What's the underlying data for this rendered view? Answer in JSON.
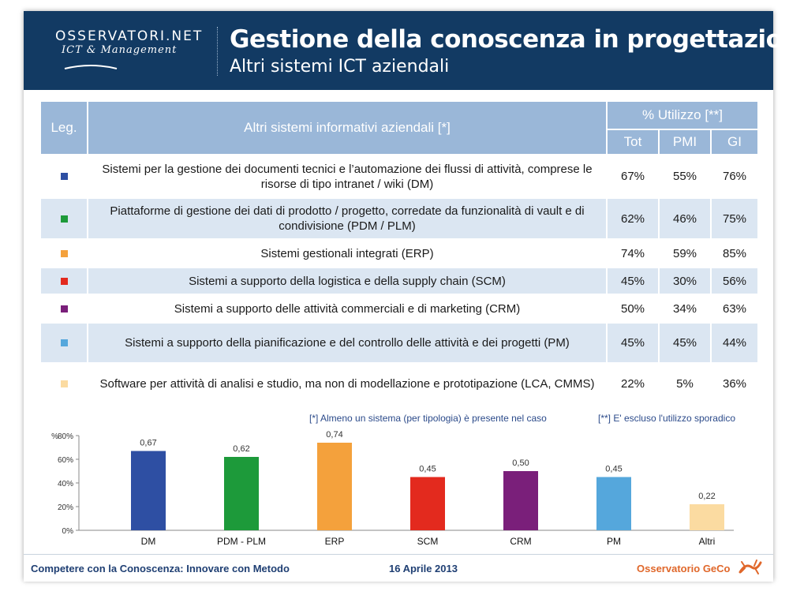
{
  "header": {
    "logo_name": "OSSERVATORI.NET",
    "logo_tagline": "ICT & Management",
    "title": "Gestione della conoscenza in progettazione",
    "subtitle": "Altri sistemi ICT aziendali"
  },
  "table": {
    "col_leg": "Leg.",
    "col_system": "Altri sistemi informativi aziendali [*]",
    "col_usage": "% Utilizzo [**]",
    "col_tot": "Tot",
    "col_pmi": "PMI",
    "col_gi": "GI",
    "rows": [
      {
        "color": "#2e4fa3",
        "label": "Sistemi per la gestione dei documenti tecnici e l’automazione dei flussi di attività, comprese le risorse di tipo intranet / wiki (DM)",
        "tot": "67%",
        "pmi": "55%",
        "gi": "76%"
      },
      {
        "color": "#1d9a3a",
        "label": "Piattaforme di gestione dei dati di prodotto / progetto, corredate da funzionalità di vault e di condivisione (PDM / PLM)",
        "tot": "62%",
        "pmi": "46%",
        "gi": "75%"
      },
      {
        "color": "#f4a13c",
        "label": "Sistemi gestionali integrati (ERP)",
        "tot": "74%",
        "pmi": "59%",
        "gi": "85%"
      },
      {
        "color": "#e32a1e",
        "label": "Sistemi a supporto della logistica e della supply chain (SCM)",
        "tot": "45%",
        "pmi": "30%",
        "gi": "56%"
      },
      {
        "color": "#7a1f7a",
        "label": "Sistemi a supporto delle attività commerciali e di marketing (CRM)",
        "tot": "50%",
        "pmi": "34%",
        "gi": "63%"
      },
      {
        "color": "#55a7dc",
        "label": "Sistemi a supporto della pianificazione e del controllo delle attività e dei progetti (PM)",
        "tot": "45%",
        "pmi": "45%",
        "gi": "44%"
      },
      {
        "color": "#fbdba1",
        "label": "Software per attività di analisi e studio, ma non di modellazione e prototipazione (LCA, CMMS)",
        "tot": "22%",
        "pmi": "5%",
        "gi": "36%"
      }
    ]
  },
  "notes": {
    "n1": "[*] Almeno un sistema (per tipologia) è presente nel caso",
    "n2": "[**] E' escluso l'utilizzo sporadico"
  },
  "chart_data": {
    "type": "bar",
    "ylabel": "%",
    "categories": [
      "DM",
      "PDM - PLM",
      "ERP",
      "SCM",
      "CRM",
      "PM",
      "Altri"
    ],
    "values": [
      0.67,
      0.62,
      0.74,
      0.45,
      0.5,
      0.45,
      0.22
    ],
    "value_labels": [
      "0,67",
      "0,62",
      "0,74",
      "0,45",
      "0,50",
      "0,45",
      "0,22"
    ],
    "colors": [
      "#2e4fa3",
      "#1d9a3a",
      "#f4a13c",
      "#e32a1e",
      "#7a1f7a",
      "#55a7dc",
      "#fbdba1"
    ],
    "ylim": [
      0,
      0.8
    ],
    "yticks": [
      0,
      0.2,
      0.4,
      0.6,
      0.8
    ],
    "ytick_labels": [
      "0%",
      "20%",
      "40%",
      "60%",
      "80%"
    ]
  },
  "footer": {
    "left": "Competere con la Conoscenza: Innovare con Metodo",
    "date": "16 Aprile 2013",
    "right": "Osservatorio GeCo"
  }
}
